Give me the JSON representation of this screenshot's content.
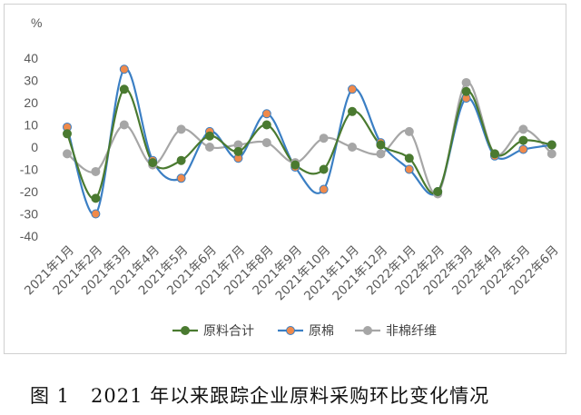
{
  "caption": "图 1   2021 年以来跟踪企业原料采购环比变化情况",
  "chart_data": {
    "type": "line",
    "ylabel": "%",
    "ylim": [
      -40,
      40
    ],
    "yticks": [
      40,
      30,
      20,
      10,
      0,
      -10,
      -20,
      -30,
      -40
    ],
    "grid": false,
    "legend_position": "bottom",
    "categories": [
      "2021年1月",
      "2021年2月",
      "2021年3月",
      "2021年4月",
      "2021年5月",
      "2021年6月",
      "2021年7月",
      "2021年8月",
      "2021年9月",
      "2021年10月",
      "2021年11月",
      "2021年12月",
      "2022年1月",
      "2022年2月",
      "2022年3月",
      "2022年4月",
      "2022年5月",
      "2022年6月"
    ],
    "series": [
      {
        "name": "原料合计",
        "color": "#4a7a30",
        "marker_fill": "#4a7a30",
        "values": [
          6,
          -23,
          26,
          -7,
          -6,
          5,
          -2,
          10,
          -8,
          -10,
          16,
          1,
          -5,
          -20,
          25,
          -3,
          3,
          1
        ]
      },
      {
        "name": "原棉",
        "color": "#3b7fc4",
        "marker_fill": "#f08a4b",
        "values": [
          9,
          -30,
          35,
          -6,
          -14,
          7,
          -5,
          15,
          -9,
          -19,
          26,
          2,
          -10,
          -20,
          22,
          -4,
          -1,
          1
        ]
      },
      {
        "name": "非棉纤维",
        "color": "#a6a6a6",
        "marker_fill": "#a6a6a6",
        "values": [
          -3,
          -11,
          10,
          -8,
          8,
          0,
          1,
          2,
          -7,
          4,
          0,
          -3,
          7,
          -21,
          29,
          -3,
          8,
          -3
        ]
      }
    ]
  }
}
